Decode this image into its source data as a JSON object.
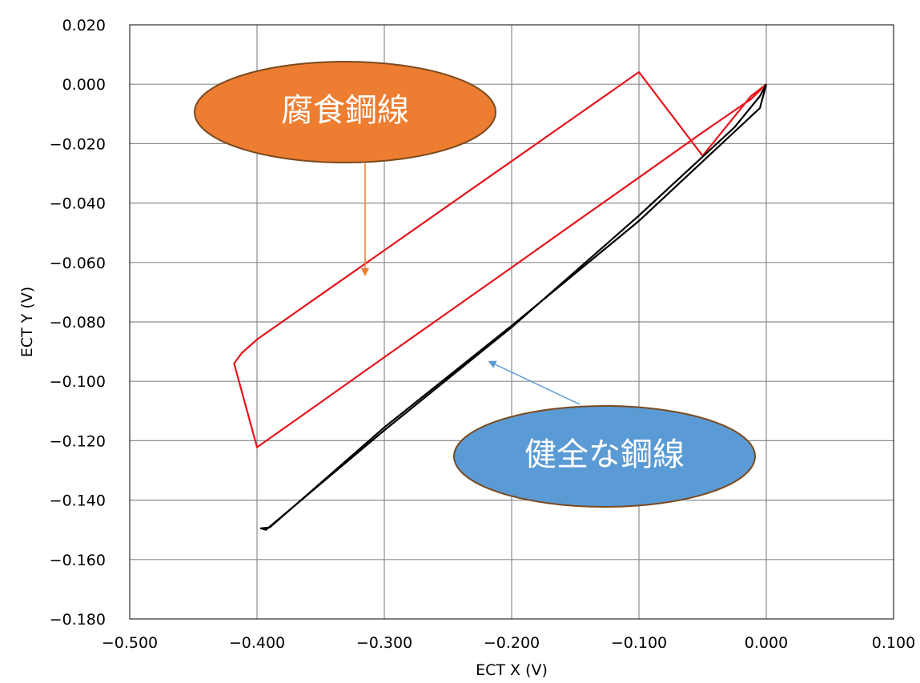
{
  "chart_data": {
    "type": "line",
    "xlabel": "ECT  X (V)",
    "ylabel": "ECT  Y (V)",
    "xlim": [
      -0.5,
      0.1
    ],
    "ylim": [
      -0.18,
      0.02
    ],
    "x_ticks": [
      "−0.500",
      "−0.400",
      "−0.300",
      "−0.200",
      "−0.100",
      "0.000",
      "0.100"
    ],
    "y_ticks": [
      "0.020",
      "0.000",
      "−0.020",
      "−0.040",
      "−0.060",
      "−0.080",
      "−0.100",
      "−0.120",
      "−0.140",
      "−0.160",
      "−0.180"
    ],
    "grid": true,
    "series": [
      {
        "color": "#e8141b",
        "x": [
          0.0,
          -0.012,
          -0.05,
          -0.1,
          -0.15,
          -0.2,
          -0.25,
          -0.3,
          -0.35,
          -0.4,
          -0.418,
          -0.412,
          -0.4,
          -0.35,
          -0.3,
          -0.25,
          -0.2,
          -0.15,
          -0.1,
          -0.05,
          -0.012,
          0.0
        ],
        "y": [
          0.0,
          -0.005,
          -0.0162,
          -0.0314,
          -0.0465,
          -0.0617,
          -0.0768,
          -0.0919,
          -0.1071,
          -0.1222,
          -0.094,
          -0.0905,
          -0.0859,
          -0.0709,
          -0.0559,
          -0.0409,
          -0.0259,
          -0.0109,
          0.0041,
          -0.0241,
          -0.004,
          0.0
        ]
      },
      {
        "color": "#000000",
        "x": [
          0.0,
          -0.005,
          -0.03,
          -0.1,
          -0.2,
          -0.3,
          -0.39,
          -0.397,
          -0.393,
          -0.3,
          -0.2,
          -0.1,
          -0.025,
          -0.005,
          0.0
        ],
        "y": [
          0.0,
          -0.008,
          -0.018,
          -0.046,
          -0.0813,
          -0.1155,
          -0.1492,
          -0.1495,
          -0.15,
          -0.1165,
          -0.0818,
          -0.0442,
          -0.0145,
          -0.004,
          0.0
        ]
      }
    ],
    "annotations": [
      {
        "text": "腐食鋼線",
        "fill": "#ed7d31",
        "stroke": "#7a4a1e",
        "arrow_color": "#ed7d31"
      },
      {
        "text": "健全な鋼線",
        "fill": "#5b9bd5",
        "stroke": "#7a4a1e",
        "arrow_color": "#5b9bd5"
      }
    ]
  }
}
